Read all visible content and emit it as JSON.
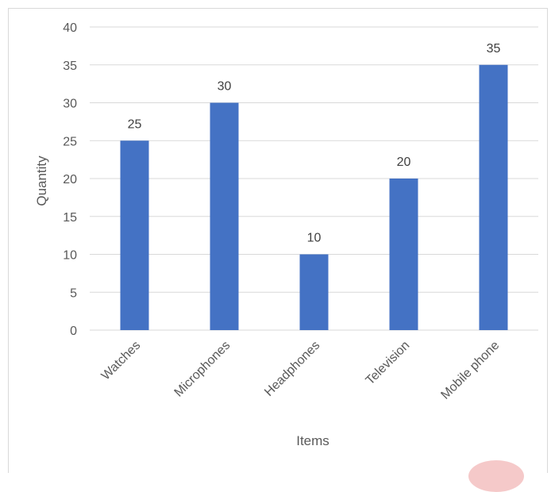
{
  "chart_data": {
    "type": "bar",
    "categories": [
      "Watches",
      "Microphones",
      "Headphones",
      "Television",
      "Mobile phone"
    ],
    "values": [
      25,
      30,
      10,
      20,
      35
    ],
    "title": "",
    "xlabel": "Items",
    "ylabel": "Quantity",
    "ylim": [
      0,
      40
    ],
    "yticks": [
      0,
      5,
      10,
      15,
      20,
      25,
      30,
      35,
      40
    ],
    "grid": true,
    "legend": "none",
    "data_labels": true,
    "colors": {
      "bar": "#4472c4",
      "grid": "#d9d9d9",
      "axis_text": "#595959"
    }
  }
}
